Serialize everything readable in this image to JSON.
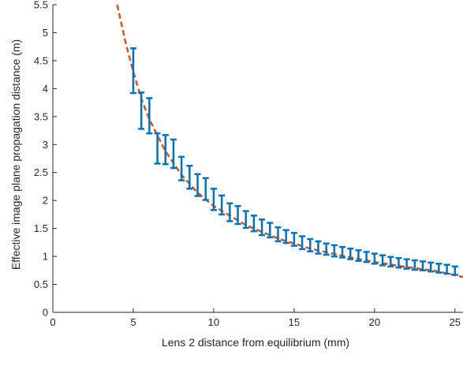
{
  "chart_data": {
    "type": "scatter",
    "title": "",
    "xlabel": "Lens 2 distance from equilibrium (mm)",
    "ylabel": "Effective image plane propagation distance (m)",
    "xlim": [
      0,
      25.5
    ],
    "ylim": [
      0,
      5.5
    ],
    "xticks": [
      0,
      5,
      10,
      15,
      20,
      25
    ],
    "yticks": [
      0,
      0.5,
      1,
      1.5,
      2,
      2.5,
      3,
      3.5,
      4,
      4.5,
      5,
      5.5
    ],
    "xtick_labels": [
      "0",
      "5",
      "10",
      "15",
      "20",
      "25"
    ],
    "ytick_labels": [
      "0",
      "0.5",
      "1",
      "1.5",
      "2",
      "2.5",
      "3",
      "3.5",
      "4",
      "4.5",
      "5",
      "5.5"
    ],
    "grid": false,
    "legend": "none",
    "series": [
      {
        "kind": "errorbar",
        "color": "#0072BD",
        "points": [
          {
            "x": 5.0,
            "low": 3.92,
            "high": 4.72
          },
          {
            "x": 5.5,
            "low": 3.28,
            "high": 3.93
          },
          {
            "x": 6.0,
            "low": 3.2,
            "high": 3.83
          },
          {
            "x": 6.5,
            "low": 2.66,
            "high": 3.2
          },
          {
            "x": 7.0,
            "low": 2.65,
            "high": 3.17
          },
          {
            "x": 7.5,
            "low": 2.58,
            "high": 3.09
          },
          {
            "x": 8.0,
            "low": 2.36,
            "high": 2.78
          },
          {
            "x": 8.5,
            "low": 2.21,
            "high": 2.62
          },
          {
            "x": 9.0,
            "low": 2.08,
            "high": 2.47
          },
          {
            "x": 9.5,
            "low": 2.01,
            "high": 2.4
          },
          {
            "x": 10.0,
            "low": 1.83,
            "high": 2.21
          },
          {
            "x": 10.5,
            "low": 1.75,
            "high": 2.09
          },
          {
            "x": 11.0,
            "low": 1.63,
            "high": 1.95
          },
          {
            "x": 11.5,
            "low": 1.58,
            "high": 1.9
          },
          {
            "x": 12.0,
            "low": 1.51,
            "high": 1.81
          },
          {
            "x": 12.5,
            "low": 1.45,
            "high": 1.73
          },
          {
            "x": 13.0,
            "low": 1.38,
            "high": 1.66
          },
          {
            "x": 13.5,
            "low": 1.34,
            "high": 1.6
          },
          {
            "x": 14.0,
            "low": 1.27,
            "high": 1.52
          },
          {
            "x": 14.5,
            "low": 1.24,
            "high": 1.47
          },
          {
            "x": 15.0,
            "low": 1.19,
            "high": 1.42
          },
          {
            "x": 15.5,
            "low": 1.13,
            "high": 1.36
          },
          {
            "x": 16.0,
            "low": 1.09,
            "high": 1.31
          },
          {
            "x": 16.5,
            "low": 1.05,
            "high": 1.27
          },
          {
            "x": 17.0,
            "low": 1.03,
            "high": 1.23
          },
          {
            "x": 17.5,
            "low": 1.0,
            "high": 1.2
          },
          {
            "x": 18.0,
            "low": 0.98,
            "high": 1.17
          },
          {
            "x": 18.5,
            "low": 0.95,
            "high": 1.14
          },
          {
            "x": 19.0,
            "low": 0.92,
            "high": 1.11
          },
          {
            "x": 19.5,
            "low": 0.9,
            "high": 1.08
          },
          {
            "x": 20.0,
            "low": 0.87,
            "high": 1.05
          },
          {
            "x": 20.5,
            "low": 0.84,
            "high": 1.02
          },
          {
            "x": 21.0,
            "low": 0.82,
            "high": 0.99
          },
          {
            "x": 21.5,
            "low": 0.8,
            "high": 0.97
          },
          {
            "x": 22.0,
            "low": 0.78,
            "high": 0.95
          },
          {
            "x": 22.5,
            "low": 0.76,
            "high": 0.93
          },
          {
            "x": 23.0,
            "low": 0.75,
            "high": 0.91
          },
          {
            "x": 23.5,
            "low": 0.73,
            "high": 0.89
          },
          {
            "x": 24.0,
            "low": 0.71,
            "high": 0.87
          },
          {
            "x": 24.5,
            "low": 0.69,
            "high": 0.85
          },
          {
            "x": 25.0,
            "low": 0.67,
            "high": 0.82
          }
        ]
      },
      {
        "kind": "fit-line",
        "style": "dashed",
        "color": "#D95319",
        "x": [
          4.0,
          4.5,
          5.0,
          5.5,
          6.0,
          7.0,
          8.0,
          9.0,
          10.0,
          12.0,
          14.0,
          16.0,
          18.0,
          20.0,
          22.0,
          24.0,
          25.5
        ],
        "y": [
          5.5,
          4.85,
          4.3,
          3.82,
          3.45,
          2.88,
          2.46,
          2.14,
          1.9,
          1.56,
          1.32,
          1.14,
          1.01,
          0.9,
          0.81,
          0.73,
          0.63
        ]
      }
    ]
  }
}
